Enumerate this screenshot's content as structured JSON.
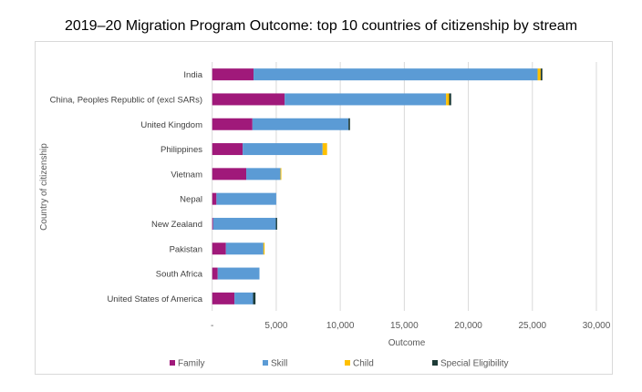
{
  "chart_data": {
    "type": "bar",
    "orientation": "horizontal",
    "stacked": true,
    "title": "2019–20 Migration Program Outcome: top 10 countries of citizenship by stream",
    "xlabel": "Outcome",
    "ylabel": "Country of citizenship",
    "xlim": [
      0,
      30000
    ],
    "xticks": [
      0,
      5000,
      10000,
      15000,
      20000,
      25000,
      30000
    ],
    "xtick_labels": [
      "-",
      "5,000",
      "10,000",
      "15,000",
      "20,000",
      "25,000",
      "30,000"
    ],
    "grid": "vertical",
    "legend_position": "bottom",
    "categories": [
      "India",
      "China, Peoples Republic of (excl SARs)",
      "United Kingdom",
      "Philippines",
      "Vietnam",
      "Nepal",
      "New Zealand",
      "Pakistan",
      "South Africa",
      "United States of America"
    ],
    "series": [
      {
        "name": "Family",
        "color": "#a0197a",
        "values": [
          3230,
          5660,
          3140,
          2380,
          2660,
          330,
          70,
          1070,
          430,
          1740
        ]
      },
      {
        "name": "Skill",
        "color": "#5b9bd5",
        "values": [
          22180,
          12600,
          7500,
          6240,
          2670,
          4670,
          4900,
          2930,
          3260,
          1450
        ]
      },
      {
        "name": "Child",
        "color": "#ffc000",
        "values": [
          240,
          240,
          0,
          350,
          70,
          0,
          0,
          90,
          0,
          0
        ]
      },
      {
        "name": "Special Eligibility",
        "color": "#1d3b36",
        "values": [
          130,
          160,
          120,
          0,
          0,
          0,
          100,
          0,
          0,
          190
        ]
      }
    ]
  }
}
